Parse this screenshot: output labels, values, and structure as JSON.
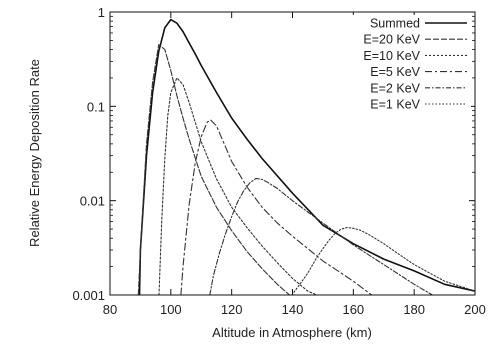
{
  "chart_data": {
    "type": "line",
    "xlabel": "Altitude in Atmosphere (km)",
    "ylabel": "Relative Energy Deposition Rate",
    "xlim": [
      80,
      200
    ],
    "ylim": [
      0.001,
      1
    ],
    "yscale": "log",
    "x_ticks": [
      80,
      100,
      120,
      140,
      160,
      180,
      200
    ],
    "x_tick_labels": [
      "80",
      "100",
      "120",
      "140",
      "160",
      "180",
      "200"
    ],
    "y_ticks": [
      0.001,
      0.01,
      0.1,
      1
    ],
    "y_tick_labels": [
      "0.001",
      "0.01",
      "0.1",
      "1"
    ],
    "grid": false,
    "legend_position": "top-right",
    "series": [
      {
        "name": "Summed",
        "color": "#111111",
        "dash": "",
        "x": [
          89.7,
          90,
          92,
          94,
          96,
          98,
          100,
          102,
          104,
          106,
          108,
          110,
          115,
          120,
          125,
          130,
          140,
          150,
          160,
          170,
          180,
          190,
          200
        ],
        "y": [
          0.001,
          0.003,
          0.03,
          0.14,
          0.38,
          0.68,
          0.83,
          0.76,
          0.62,
          0.47,
          0.36,
          0.27,
          0.14,
          0.075,
          0.045,
          0.028,
          0.012,
          0.0055,
          0.0035,
          0.0024,
          0.0018,
          0.0013,
          0.0011
        ]
      },
      {
        "name": "E=20 KeV",
        "color": "#333333",
        "dash": "6 2",
        "x": [
          89.3,
          90,
          92,
          94,
          96,
          98,
          100,
          102,
          104,
          106,
          110,
          115,
          120,
          125,
          130,
          135,
          139
        ],
        "y": [
          0.001,
          0.003,
          0.04,
          0.18,
          0.45,
          0.4,
          0.24,
          0.13,
          0.075,
          0.045,
          0.018,
          0.0085,
          0.0048,
          0.0029,
          0.0019,
          0.0013,
          0.001
        ]
      },
      {
        "name": "E=10 KeV",
        "color": "#333333",
        "dash": "2 2",
        "x": [
          96.1,
          97,
          98,
          99,
          100,
          102,
          104,
          106,
          108,
          110,
          115,
          120,
          125,
          130,
          135,
          140,
          145,
          148
        ],
        "y": [
          0.001,
          0.006,
          0.028,
          0.08,
          0.14,
          0.2,
          0.17,
          0.11,
          0.068,
          0.042,
          0.017,
          0.0085,
          0.0052,
          0.0033,
          0.0022,
          0.0015,
          0.0011,
          0.001
        ]
      },
      {
        "name": "E=5 KeV",
        "color": "#333333",
        "dash": "7 3 2 3",
        "x": [
          103.3,
          104,
          106,
          108,
          110,
          112,
          113,
          115,
          118,
          120,
          125,
          130,
          135,
          140,
          145,
          150,
          160,
          166
        ],
        "y": [
          0.001,
          0.002,
          0.009,
          0.025,
          0.048,
          0.068,
          0.072,
          0.062,
          0.037,
          0.026,
          0.014,
          0.0085,
          0.0058,
          0.0042,
          0.0031,
          0.0023,
          0.0014,
          0.001
        ]
      },
      {
        "name": "E=2 KeV",
        "color": "#333333",
        "dash": "5 2 1.5 2",
        "x": [
          112.8,
          114,
          116,
          118,
          120,
          122,
          124,
          126,
          128,
          130,
          132,
          135,
          140,
          145,
          150,
          160,
          170,
          180,
          186
        ],
        "y": [
          0.001,
          0.0016,
          0.0028,
          0.0045,
          0.0068,
          0.0098,
          0.0128,
          0.0155,
          0.0172,
          0.0168,
          0.0155,
          0.0135,
          0.01,
          0.0076,
          0.0058,
          0.0034,
          0.0021,
          0.0013,
          0.001
        ]
      },
      {
        "name": "E=1 KeV",
        "color": "#333333",
        "dash": "1.5 2",
        "x": [
          139.8,
          142,
          145,
          148,
          150,
          152,
          154,
          156,
          158,
          160,
          162,
          165,
          170,
          175,
          180,
          190,
          200
        ],
        "y": [
          0.001,
          0.00125,
          0.0017,
          0.0025,
          0.0031,
          0.0038,
          0.0045,
          0.005,
          0.0052,
          0.0051,
          0.0049,
          0.0044,
          0.0035,
          0.0027,
          0.0021,
          0.0014,
          0.0011
        ]
      }
    ]
  }
}
